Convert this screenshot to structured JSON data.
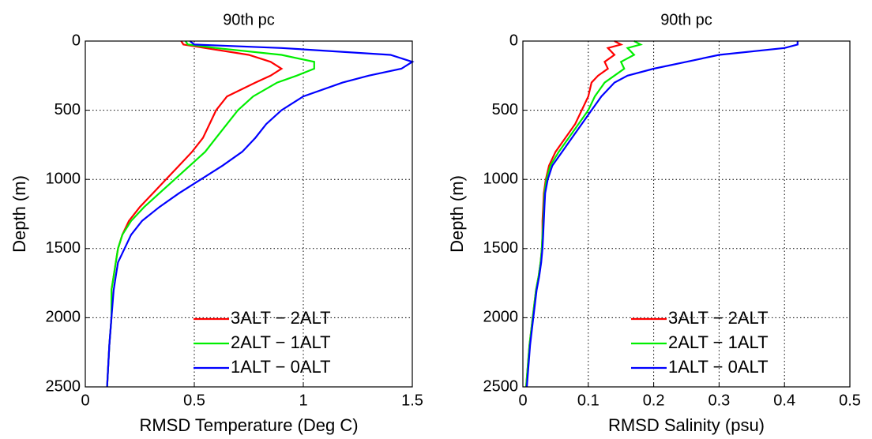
{
  "chart_data": [
    {
      "type": "line",
      "title": "90th pc",
      "x_label": "RMSD Temperature (Deg C)",
      "y_label": "Depth (m)",
      "y": [
        0,
        25,
        50,
        100,
        150,
        200,
        250,
        300,
        400,
        500,
        600,
        700,
        800,
        900,
        1000,
        1100,
        1200,
        1300,
        1400,
        1500,
        1600,
        1700,
        1800,
        2000,
        2200,
        2500
      ],
      "series": [
        {
          "name": "3ALT − 2ALT",
          "color": "#ff0000",
          "values": [
            0.44,
            0.45,
            0.55,
            0.75,
            0.85,
            0.9,
            0.85,
            0.78,
            0.65,
            0.6,
            0.57,
            0.54,
            0.49,
            0.43,
            0.37,
            0.31,
            0.25,
            0.2,
            0.17,
            0.15,
            0.14,
            0.13,
            0.12,
            0.12,
            0.11,
            0.1
          ]
        },
        {
          "name": "2ALT − 1ALT",
          "color": "#00ee00",
          "values": [
            0.46,
            0.47,
            0.6,
            0.9,
            1.05,
            1.05,
            0.97,
            0.88,
            0.77,
            0.7,
            0.65,
            0.6,
            0.55,
            0.48,
            0.41,
            0.34,
            0.27,
            0.21,
            0.17,
            0.15,
            0.14,
            0.13,
            0.12,
            0.12,
            0.11,
            0.1
          ]
        },
        {
          "name": "1ALT − 0ALT",
          "color": "#0000ff",
          "values": [
            0.48,
            0.5,
            0.9,
            1.4,
            1.5,
            1.45,
            1.3,
            1.18,
            1.0,
            0.9,
            0.83,
            0.78,
            0.72,
            0.63,
            0.53,
            0.43,
            0.34,
            0.26,
            0.21,
            0.18,
            0.15,
            0.14,
            0.13,
            0.12,
            0.11,
            0.1
          ]
        }
      ],
      "xlim": [
        0,
        1.5
      ],
      "xticks": [
        0,
        0.5,
        1,
        1.5
      ],
      "ylim": [
        2500,
        0
      ],
      "yticks": [
        0,
        500,
        1000,
        1500,
        2000,
        2500
      ],
      "grid": true,
      "legend": "lower right"
    },
    {
      "type": "line",
      "title": "90th pc",
      "x_label": "RMSD Salinity (psu)",
      "y_label": "Depth (m)",
      "y": [
        0,
        25,
        50,
        100,
        150,
        200,
        250,
        300,
        400,
        500,
        600,
        700,
        800,
        900,
        1000,
        1100,
        1200,
        1300,
        1400,
        1500,
        1600,
        1700,
        1800,
        2000,
        2200,
        2500
      ],
      "series": [
        {
          "name": "3ALT − 2ALT",
          "color": "#ff0000",
          "values": [
            0.14,
            0.15,
            0.13,
            0.14,
            0.125,
            0.13,
            0.115,
            0.105,
            0.1,
            0.09,
            0.08,
            0.065,
            0.05,
            0.04,
            0.035,
            0.032,
            0.031,
            0.03,
            0.03,
            0.029,
            0.027,
            0.024,
            0.02,
            0.015,
            0.01,
            0.005
          ]
        },
        {
          "name": "2ALT − 1ALT",
          "color": "#00ee00",
          "values": [
            0.17,
            0.18,
            0.16,
            0.17,
            0.15,
            0.155,
            0.14,
            0.125,
            0.11,
            0.1,
            0.085,
            0.07,
            0.055,
            0.042,
            0.036,
            0.033,
            0.032,
            0.031,
            0.03,
            0.029,
            0.027,
            0.024,
            0.02,
            0.015,
            0.01,
            0.005
          ]
        },
        {
          "name": "1ALT − 0ALT",
          "color": "#0000ff",
          "values": [
            0.42,
            0.42,
            0.4,
            0.3,
            0.25,
            0.2,
            0.16,
            0.14,
            0.12,
            0.105,
            0.09,
            0.075,
            0.06,
            0.045,
            0.038,
            0.034,
            0.033,
            0.032,
            0.031,
            0.03,
            0.028,
            0.025,
            0.021,
            0.016,
            0.011,
            0.006
          ]
        }
      ],
      "xlim": [
        0,
        0.5
      ],
      "xticks": [
        0,
        0.1,
        0.2,
        0.3,
        0.4,
        0.5
      ],
      "ylim": [
        2500,
        0
      ],
      "yticks": [
        0,
        500,
        1000,
        1500,
        2000,
        2500
      ],
      "grid": true,
      "legend": "lower right"
    }
  ]
}
